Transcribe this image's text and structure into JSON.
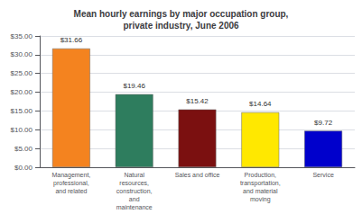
{
  "chart_data": {
    "type": "bar",
    "title": "Mean hourly earnings by major occupation group,\nprivate industry, June 2006",
    "categories": [
      "Management,\nprofessional,\nand related",
      "Natural\nresources,\nconstruction,\nand\nmaintenance",
      "Sales and office",
      "Production,\ntransportation,\nand material\nmoving",
      "Service"
    ],
    "values": [
      31.66,
      19.46,
      15.42,
      14.64,
      9.72
    ],
    "value_labels": [
      "$31.66",
      "$19.46",
      "$15.42",
      "$14.64",
      "$9.72"
    ],
    "data_labels": true,
    "colors": [
      "#F4831F",
      "#2E7D5E",
      "#7B1010",
      "#FFE800",
      "#0000CC"
    ],
    "ylim": [
      0,
      35
    ],
    "yticks": [
      {
        "value": 0,
        "label": "$0.00"
      },
      {
        "value": 5,
        "label": "$5.00"
      },
      {
        "value": 10,
        "label": "$10.00"
      },
      {
        "value": 15,
        "label": "$15.00"
      },
      {
        "value": 20,
        "label": "$20.00"
      },
      {
        "value": 25,
        "label": "$25.00"
      },
      {
        "value": 30,
        "label": "$30.00"
      },
      {
        "value": 35,
        "label": "$35.00"
      }
    ],
    "grid": true
  }
}
